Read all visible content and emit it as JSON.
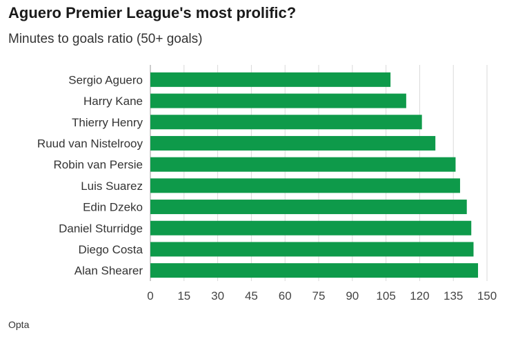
{
  "title": "Aguero Premier League's most prolific?",
  "subtitle": "Minutes to goals ratio (50+ goals)",
  "source": "Opta",
  "colors": {
    "bar": "#0e9a4a",
    "grid": "#d9d9d9",
    "axis": "#999999"
  },
  "chart_data": {
    "type": "bar",
    "orientation": "horizontal",
    "categories": [
      "Sergio Aguero",
      "Harry Kane",
      "Thierry Henry",
      "Ruud van Nistelrooy",
      "Robin van Persie",
      "Luis Suarez",
      "Edin Dzeko",
      "Daniel Sturridge",
      "Diego Costa",
      "Alan Shearer"
    ],
    "values": [
      107,
      114,
      121,
      127,
      136,
      138,
      141,
      143,
      144,
      146
    ],
    "xlim": [
      0,
      150
    ],
    "xticks": [
      "0",
      "15",
      "30",
      "45",
      "60",
      "75",
      "90",
      "105",
      "120",
      "135",
      "150"
    ],
    "grid": true
  }
}
